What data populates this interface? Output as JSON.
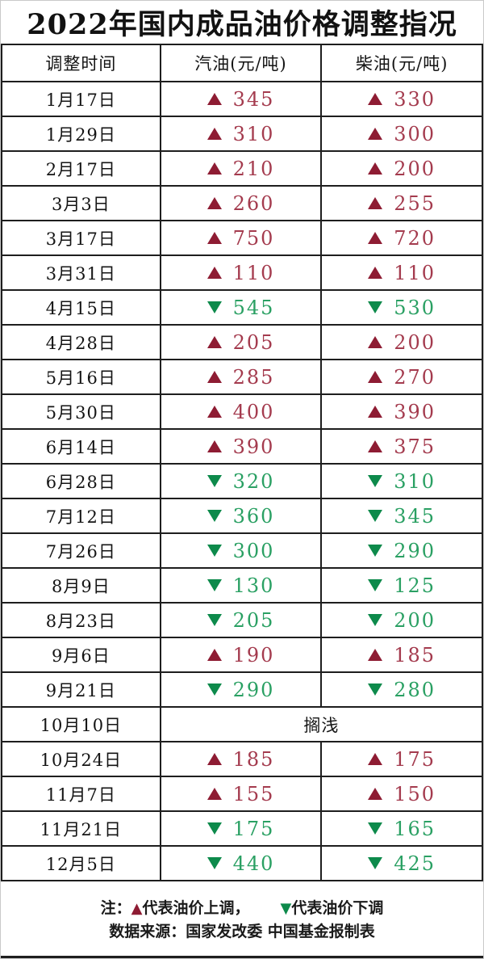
{
  "page": {
    "title": "2022年国内成品油价格调整指况"
  },
  "colors": {
    "up_triangle": "#8e1c33",
    "up_value": "#a43b4e",
    "down_triangle": "#0d8a4b",
    "down_value": "#2aa063",
    "grid_line": "#1e1e1e"
  },
  "table": {
    "headers": [
      {
        "label": "调整时间"
      },
      {
        "label": "汽油(元/吨)"
      },
      {
        "label": "柴油(元/吨)"
      }
    ],
    "rows": [
      {
        "date": "1月17日",
        "gasoline": {
          "direction": "up",
          "value": "345"
        },
        "diesel": {
          "direction": "up",
          "value": "330"
        }
      },
      {
        "date": "1月29日",
        "gasoline": {
          "direction": "up",
          "value": "310"
        },
        "diesel": {
          "direction": "up",
          "value": "300"
        }
      },
      {
        "date": "2月17日",
        "gasoline": {
          "direction": "up",
          "value": "210"
        },
        "diesel": {
          "direction": "up",
          "value": "200"
        }
      },
      {
        "date": "3月3日",
        "gasoline": {
          "direction": "up",
          "value": "260"
        },
        "diesel": {
          "direction": "up",
          "value": "255"
        }
      },
      {
        "date": "3月17日",
        "gasoline": {
          "direction": "up",
          "value": "750"
        },
        "diesel": {
          "direction": "up",
          "value": "720"
        }
      },
      {
        "date": "3月31日",
        "gasoline": {
          "direction": "up",
          "value": "110"
        },
        "diesel": {
          "direction": "up",
          "value": "110"
        }
      },
      {
        "date": "4月15日",
        "gasoline": {
          "direction": "down",
          "value": "545"
        },
        "diesel": {
          "direction": "down",
          "value": "530"
        }
      },
      {
        "date": "4月28日",
        "gasoline": {
          "direction": "up",
          "value": "205"
        },
        "diesel": {
          "direction": "up",
          "value": "200"
        }
      },
      {
        "date": "5月16日",
        "gasoline": {
          "direction": "up",
          "value": "285"
        },
        "diesel": {
          "direction": "up",
          "value": "270"
        }
      },
      {
        "date": "5月30日",
        "gasoline": {
          "direction": "up",
          "value": "400"
        },
        "diesel": {
          "direction": "up",
          "value": "390"
        }
      },
      {
        "date": "6月14日",
        "gasoline": {
          "direction": "up",
          "value": "390"
        },
        "diesel": {
          "direction": "up",
          "value": "375"
        }
      },
      {
        "date": "6月28日",
        "gasoline": {
          "direction": "down",
          "value": "320"
        },
        "diesel": {
          "direction": "down",
          "value": "310"
        }
      },
      {
        "date": "7月12日",
        "gasoline": {
          "direction": "down",
          "value": "360"
        },
        "diesel": {
          "direction": "down",
          "value": "345"
        }
      },
      {
        "date": "7月26日",
        "gasoline": {
          "direction": "down",
          "value": "300"
        },
        "diesel": {
          "direction": "down",
          "value": "290"
        }
      },
      {
        "date": "8月9日",
        "gasoline": {
          "direction": "down",
          "value": "130"
        },
        "diesel": {
          "direction": "down",
          "value": "125"
        }
      },
      {
        "date": "8月23日",
        "gasoline": {
          "direction": "down",
          "value": "205"
        },
        "diesel": {
          "direction": "down",
          "value": "200"
        }
      },
      {
        "date": "9月6日",
        "gasoline": {
          "direction": "up",
          "value": "190"
        },
        "diesel": {
          "direction": "up",
          "value": "185"
        }
      },
      {
        "date": "9月21日",
        "gasoline": {
          "direction": "down",
          "value": "290"
        },
        "diesel": {
          "direction": "down",
          "value": "280"
        }
      },
      {
        "date": "10月10日",
        "merged_label": "搁浅"
      },
      {
        "date": "10月24日",
        "gasoline": {
          "direction": "up",
          "value": "185"
        },
        "diesel": {
          "direction": "up",
          "value": "175"
        }
      },
      {
        "date": "11月7日",
        "gasoline": {
          "direction": "up",
          "value": "155"
        },
        "diesel": {
          "direction": "up",
          "value": "150"
        }
      },
      {
        "date": "11月21日",
        "gasoline": {
          "direction": "down",
          "value": "175"
        },
        "diesel": {
          "direction": "down",
          "value": "165"
        }
      },
      {
        "date": "12月5日",
        "gasoline": {
          "direction": "down",
          "value": "440"
        },
        "diesel": {
          "direction": "down",
          "value": "425"
        }
      }
    ]
  },
  "footer": {
    "note_label": "注：",
    "up_icon": "▲",
    "up_text": "代表油价上调，",
    "down_icon": "▼",
    "down_text": "代表油价下调",
    "source_text": "数据来源：国家发改委  中国基金报制表"
  },
  "chart_data": {
    "type": "table",
    "title": "2022年国内成品油价格调整指况",
    "columns": [
      "调整时间",
      "汽油(元/吨)",
      "柴油(元/吨)"
    ],
    "unit": "元/吨",
    "rows": [
      [
        "1月17日",
        345,
        330
      ],
      [
        "1月29日",
        310,
        300
      ],
      [
        "2月17日",
        210,
        200
      ],
      [
        "3月3日",
        260,
        255
      ],
      [
        "3月17日",
        750,
        720
      ],
      [
        "3月31日",
        110,
        110
      ],
      [
        "4月15日",
        -545,
        -530
      ],
      [
        "4月28日",
        205,
        200
      ],
      [
        "5月16日",
        285,
        270
      ],
      [
        "5月30日",
        400,
        390
      ],
      [
        "6月14日",
        390,
        375
      ],
      [
        "6月28日",
        -320,
        -310
      ],
      [
        "7月12日",
        -360,
        -345
      ],
      [
        "7月26日",
        -300,
        -290
      ],
      [
        "8月9日",
        -130,
        -125
      ],
      [
        "8月23日",
        -205,
        -200
      ],
      [
        "9月6日",
        190,
        185
      ],
      [
        "9月21日",
        -290,
        -280
      ],
      [
        "10月10日",
        "搁浅",
        "搁浅"
      ],
      [
        "10月24日",
        185,
        175
      ],
      [
        "11月7日",
        155,
        150
      ],
      [
        "11月21日",
        -175,
        -165
      ],
      [
        "12月5日",
        -440,
        -425
      ]
    ],
    "notes": [
      "注：▲代表油价上调，▼代表油价下调",
      "数据来源：国家发改委 中国基金报制表"
    ]
  }
}
